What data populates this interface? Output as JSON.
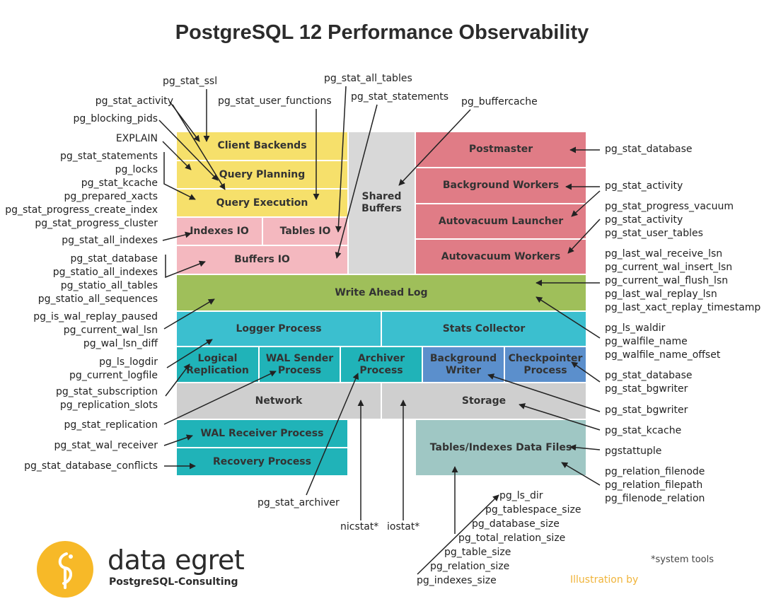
{
  "title": "PostgreSQL 12 Performance Observability",
  "colors": {
    "yellow": "#f6e06b",
    "pink": "#f4b8bf",
    "gray": "#d8d8d8",
    "red": "#e07c86",
    "green": "#9fbf5a",
    "teal": "#3bbfcf",
    "blue": "#5b8fcc",
    "lightgray": "#cfcfcf",
    "darkteal": "#20b3b8",
    "grayteal": "#9fc7c4",
    "logo": "#f7b928"
  },
  "boxes": {
    "client_backends": "Client Backends",
    "query_planning": "Query Planning",
    "query_execution": "Query Execution",
    "indexes_io": "Indexes IO",
    "tables_io": "Tables IO",
    "buffers_io": "Buffers IO",
    "shared_buffers_1": "Shared",
    "shared_buffers_2": "Buffers",
    "postmaster": "Postmaster",
    "background_workers": "Background Workers",
    "autovacuum_launcher": "Autovacuum Launcher",
    "autovacuum_workers": "Autovacuum Workers",
    "write_ahead_log": "Write Ahead Log",
    "logger_process": "Logger Process",
    "stats_collector": "Stats Collector",
    "logical_replication_1": "Logical",
    "logical_replication_2": "Replication",
    "wal_sender_1": "WAL Sender",
    "wal_sender_2": "Process",
    "archiver_1": "Archiver",
    "archiver_2": "Process",
    "background_writer_1": "Background",
    "background_writer_2": "Writer",
    "checkpointer_1": "Checkpointer",
    "checkpointer_2": "Process",
    "network": "Network",
    "storage": "Storage",
    "wal_receiver": "WAL Receiver Process",
    "recovery": "Recovery Process",
    "data_files": "Tables/Indexes Data Files"
  },
  "labels": {
    "pg_stat_ssl": "pg_stat_ssl",
    "pg_stat_all_tables": "pg_stat_all_tables",
    "pg_stat_statements_top": "pg_stat_statements",
    "pg_stat_user_functions": "pg_stat_user_functions",
    "pg_buffercache": "pg_buffercache",
    "left_group_1": [
      "pg_stat_activity",
      "pg_blocking_pids"
    ],
    "explain": "EXPLAIN",
    "left_group_2": [
      "pg_stat_statements",
      "pg_locks",
      "pg_stat_kcache",
      "pg_prepared_xacts",
      "pg_stat_progress_create_index",
      "pg_stat_progress_cluster"
    ],
    "pg_stat_all_indexes": "pg_stat_all_indexes",
    "left_group_3": [
      "pg_stat_database",
      "pg_statio_all_indexes",
      "pg_statio_all_tables",
      "pg_statio_all_sequences"
    ],
    "left_group_4": [
      "pg_is_wal_replay_paused",
      "pg_current_wal_lsn",
      "pg_wal_lsn_diff"
    ],
    "left_group_5": [
      "pg_ls_logdir",
      "pg_current_logfile"
    ],
    "left_group_6": [
      "pg_stat_subscription",
      "pg_replication_slots"
    ],
    "pg_stat_replication": "pg_stat_replication",
    "pg_stat_wal_receiver": "pg_stat_wal_receiver",
    "pg_stat_database_conflicts": "pg_stat_database_conflicts",
    "pg_stat_archiver": "pg_stat_archiver",
    "nicstat": "nicstat*",
    "iostat": "iostat*",
    "bottom_group": [
      "pg_ls_dir",
      "pg_tablespace_size",
      "pg_database_size",
      "pg_total_relation_size",
      "pg_table_size",
      "pg_relation_size",
      "pg_indexes_size"
    ],
    "right_pg_stat_database": "pg_stat_database",
    "right_pg_stat_activity": "pg_stat_activity",
    "right_group_1": [
      "pg_stat_progress_vacuum",
      "pg_stat_activity",
      "pg_stat_user_tables"
    ],
    "right_group_2": [
      "pg_last_wal_receive_lsn",
      "pg_current_wal_insert_lsn",
      "pg_current_wal_flush_lsn",
      "pg_last_wal_replay_lsn",
      "pg_last_xact_replay_timestamp"
    ],
    "right_group_3": [
      "pg_ls_waldir",
      "pg_walfile_name",
      "pg_walfile_name_offset"
    ],
    "right_group_4": [
      "pg_stat_database",
      "pg_stat_bgwriter"
    ],
    "right_pg_stat_bgwriter": "pg_stat_bgwriter",
    "right_pg_stat_kcache": "pg_stat_kcache",
    "right_pgstattuple": "pgstattuple",
    "right_group_5": [
      "pg_relation_filenode",
      "pg_relation_filepath",
      "pg_filenode_relation"
    ]
  },
  "footer": {
    "brand": "data egret",
    "brand_sub": "PostgreSQL-Consulting",
    "system_tools": "*system tools",
    "illustration": "Illustration by"
  }
}
